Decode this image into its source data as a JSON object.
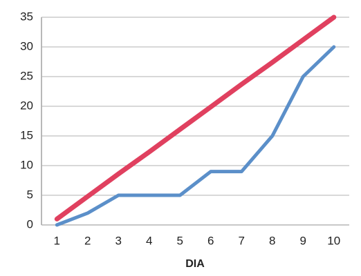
{
  "chart_data": {
    "type": "line",
    "xlabel": "DIA",
    "categories": [
      "1",
      "2",
      "3",
      "4",
      "5",
      "6",
      "7",
      "8",
      "9",
      "10"
    ],
    "series": [
      {
        "color": "#e0405f",
        "values": [
          1,
          4.8,
          8.6,
          12.3,
          16.1,
          19.9,
          23.7,
          27.4,
          31.2,
          35
        ]
      },
      {
        "color": "#5b8fc9",
        "values": [
          0,
          2,
          5,
          5,
          5,
          9,
          9,
          15,
          25,
          30
        ]
      }
    ],
    "ylim": [
      0,
      35
    ],
    "yticks": [
      0,
      5,
      10,
      15,
      20,
      25,
      30,
      35
    ],
    "grid": true
  }
}
